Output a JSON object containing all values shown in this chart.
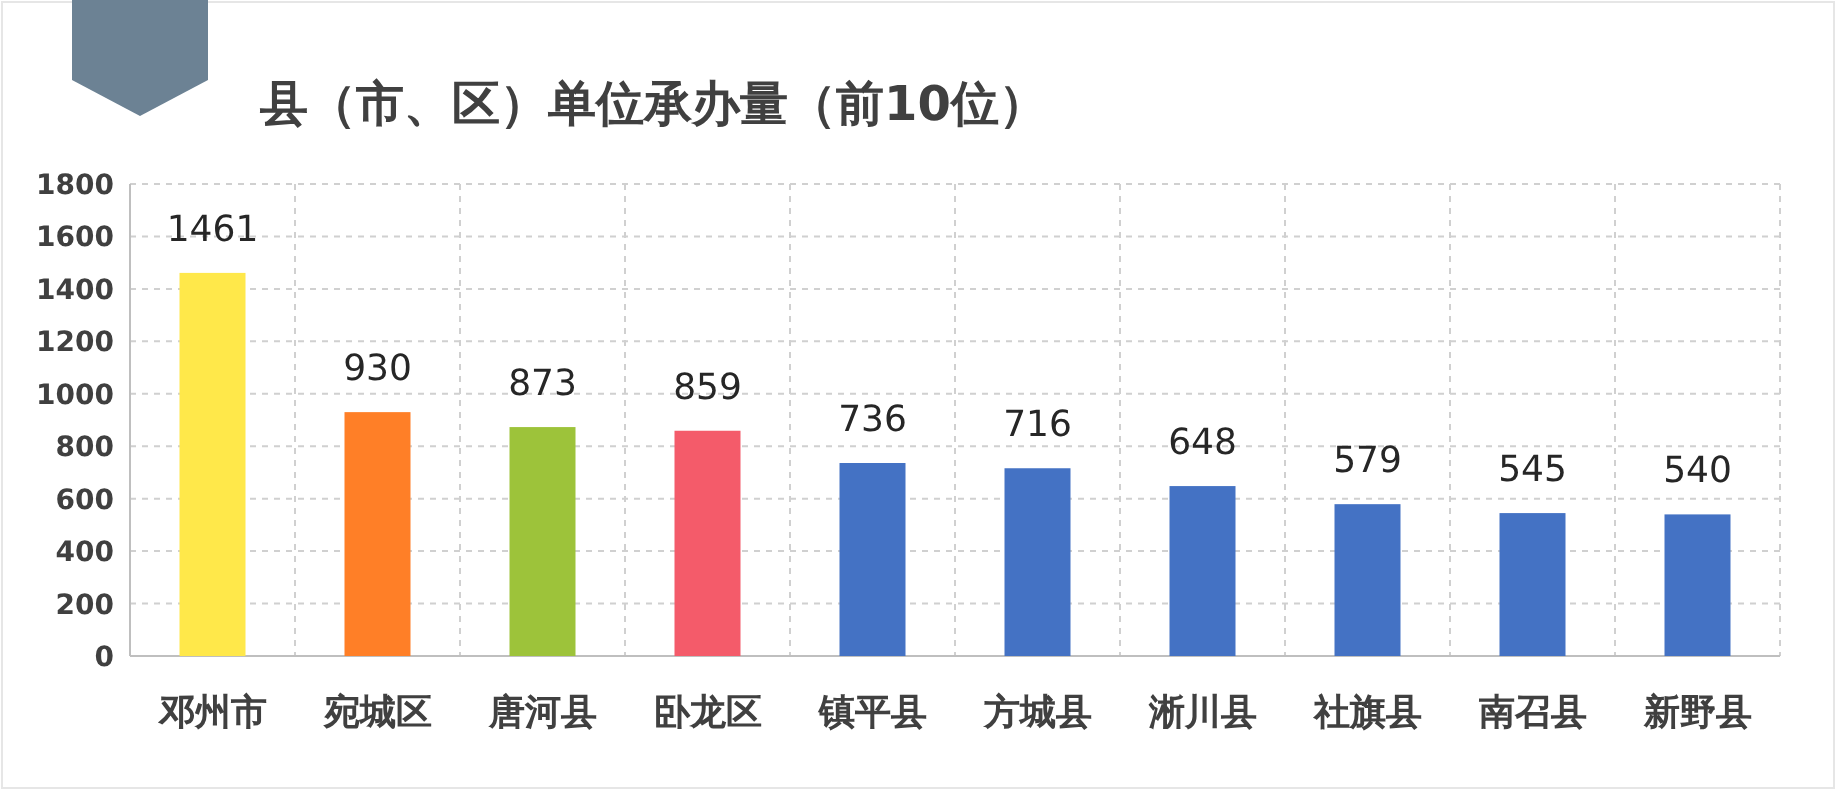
{
  "chart_data": {
    "type": "bar",
    "title": "县（市、区）单位承办量（前10位）",
    "categories": [
      "邓州市",
      "宛城区",
      "唐河县",
      "卧龙区",
      "镇平县",
      "方城县",
      "淅川县",
      "社旗县",
      "南召县",
      "新野县"
    ],
    "values": [
      1461,
      930,
      873,
      859,
      736,
      716,
      648,
      579,
      545,
      540
    ],
    "colors": [
      "#ffe84a",
      "#ff7f27",
      "#9dc33a",
      "#f45b6a",
      "#4472c4",
      "#4472c4",
      "#4472c4",
      "#4472c4",
      "#4472c4",
      "#4472c4"
    ],
    "ylim": [
      0,
      1800
    ],
    "yticks": [
      0,
      200,
      400,
      600,
      800,
      1000,
      1200,
      1400,
      1600,
      1800
    ],
    "grid": true,
    "data_labels": true
  }
}
